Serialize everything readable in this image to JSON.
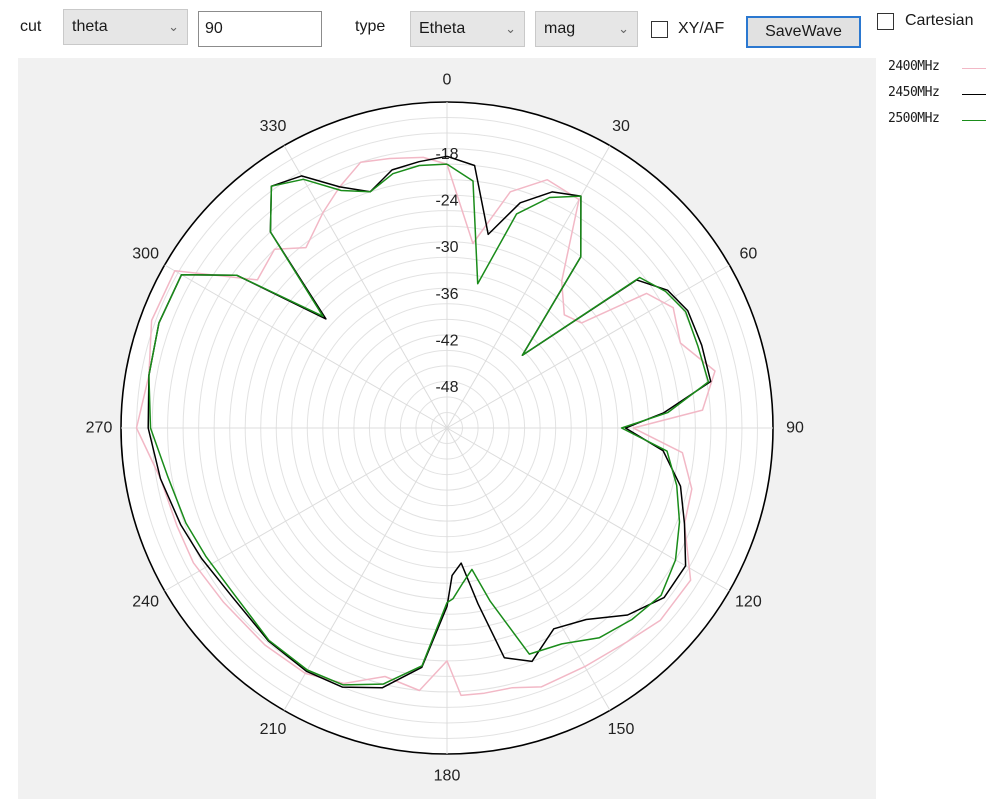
{
  "toolbar": {
    "cut_label": "cut",
    "cut_select": "theta",
    "cut_value": "90",
    "type_label": "type",
    "type_select": "Etheta",
    "mode_select": "mag",
    "xyaf_label": "XY/AF",
    "savewave_label": "SaveWave",
    "cartesian_label": "Cartesian",
    "combo_arrow_icon": "chevron-down-icon"
  },
  "legend": [
    {
      "name": "2400MHz",
      "color": "#f2b8c6"
    },
    {
      "name": "2450MHz",
      "color": "#000000"
    },
    {
      "name": "2500MHz",
      "color": "#1a8c1a"
    }
  ],
  "chart_data": {
    "type": "polar",
    "angle_ticks": [
      "0",
      "30",
      "60",
      "90",
      "120",
      "150",
      "180",
      "210",
      "240",
      "270",
      "300",
      "330"
    ],
    "radial_ticks": [
      "-18",
      "-24",
      "-30",
      "-36",
      "-42",
      "-48"
    ],
    "rlim": [
      -54,
      -12
    ],
    "angle_unit": "deg",
    "direction": "clockwise, 0 at top",
    "grid": true,
    "series": [
      {
        "name": "2400MHz",
        "color": "#f2b8c6",
        "theta": [
          0,
          8,
          15,
          22,
          30,
          38,
          46,
          52,
          56,
          62,
          70,
          78,
          86,
          90,
          96,
          104,
          112,
          122,
          132,
          140,
          150,
          160,
          166,
          172,
          177,
          180,
          186,
          194,
          202,
          210,
          220,
          232,
          242,
          250,
          260,
          270,
          280,
          290,
          300,
          308,
          316,
          322,
          330,
          336,
          342,
          348,
          355,
          360
        ],
        "r": [
          -20,
          -30,
          -22.5,
          -19.5,
          -20,
          -30,
          -33,
          -32,
          -23,
          -21,
          -22,
          -18.7,
          -21,
          -30,
          -23.5,
          -21.5,
          -21,
          -17,
          -17,
          -18,
          -18.5,
          -18.5,
          -19.5,
          -19.5,
          -19.5,
          -24,
          -20,
          -21,
          -18.5,
          -17.5,
          -17.5,
          -17.5,
          -17,
          -17,
          -16.5,
          -14,
          -15,
          -13.5,
          -13.5,
          -23,
          -22,
          -24.5,
          -22,
          -20,
          -18,
          -18.5,
          -19,
          -20
        ]
      },
      {
        "name": "2450MHz",
        "color": "#000000",
        "theta": [
          0,
          6,
          12,
          18,
          24,
          30,
          38,
          46,
          52,
          58,
          64,
          72,
          80,
          86,
          90,
          96,
          104,
          112,
          120,
          128,
          136,
          144,
          152,
          160,
          166,
          170,
          174,
          178,
          180,
          186,
          194,
          202,
          210,
          220,
          232,
          242,
          250,
          260,
          270,
          280,
          290,
          300,
          306,
          312,
          318,
          324,
          330,
          336,
          342,
          348,
          354,
          360
        ],
        "r": [
          -19,
          -20,
          -28.5,
          -23.5,
          -20.7,
          -19.5,
          -26,
          -40.5,
          -23,
          -20.5,
          -19.5,
          -19.5,
          -19.5,
          -26,
          -31,
          -26,
          -23,
          -21,
          -18.5,
          -18.5,
          -20.5,
          -23.5,
          -24.7,
          -22,
          -23.5,
          -31,
          -36.5,
          -35,
          -31,
          -23,
          -19.5,
          -18,
          -17.8,
          -18.2,
          -18.8,
          -18.2,
          -17.5,
          -16.5,
          -15.5,
          -15,
          -14.5,
          -14.5,
          -20.5,
          -33,
          -20,
          -15.5,
          -16.5,
          -20,
          -22,
          -20,
          -19.5,
          -19
        ]
      },
      {
        "name": "2500MHz",
        "color": "#1a8c1a",
        "theta": [
          0,
          6,
          12,
          18,
          24,
          30,
          38,
          46,
          52,
          58,
          64,
          72,
          80,
          86,
          90,
          96,
          104,
          112,
          120,
          128,
          136,
          144,
          152,
          160,
          166,
          170,
          174,
          178,
          180,
          186,
          194,
          202,
          210,
          220,
          232,
          242,
          250,
          260,
          270,
          280,
          290,
          300,
          306,
          312,
          318,
          324,
          330,
          336,
          342,
          348,
          354,
          360
        ],
        "r": [
          -20,
          -22,
          -35,
          -25,
          -21.5,
          -19.5,
          -26,
          -40.5,
          -22.5,
          -20.8,
          -19.8,
          -20,
          -19.8,
          -25.5,
          -31.5,
          -25.5,
          -23.5,
          -21.7,
          -20,
          -19,
          -19.7,
          -20.6,
          -22.5,
          -23,
          -31,
          -35.5,
          -34,
          -32,
          -31.5,
          -23.2,
          -20,
          -18.3,
          -18,
          -18.3,
          -19.2,
          -18.8,
          -18.2,
          -17.5,
          -15.8,
          -15,
          -14.5,
          -14.5,
          -20.5,
          -32.5,
          -20,
          -15.5,
          -17,
          -20.5,
          -22,
          -20.5,
          -20,
          -20
        ]
      }
    ]
  }
}
